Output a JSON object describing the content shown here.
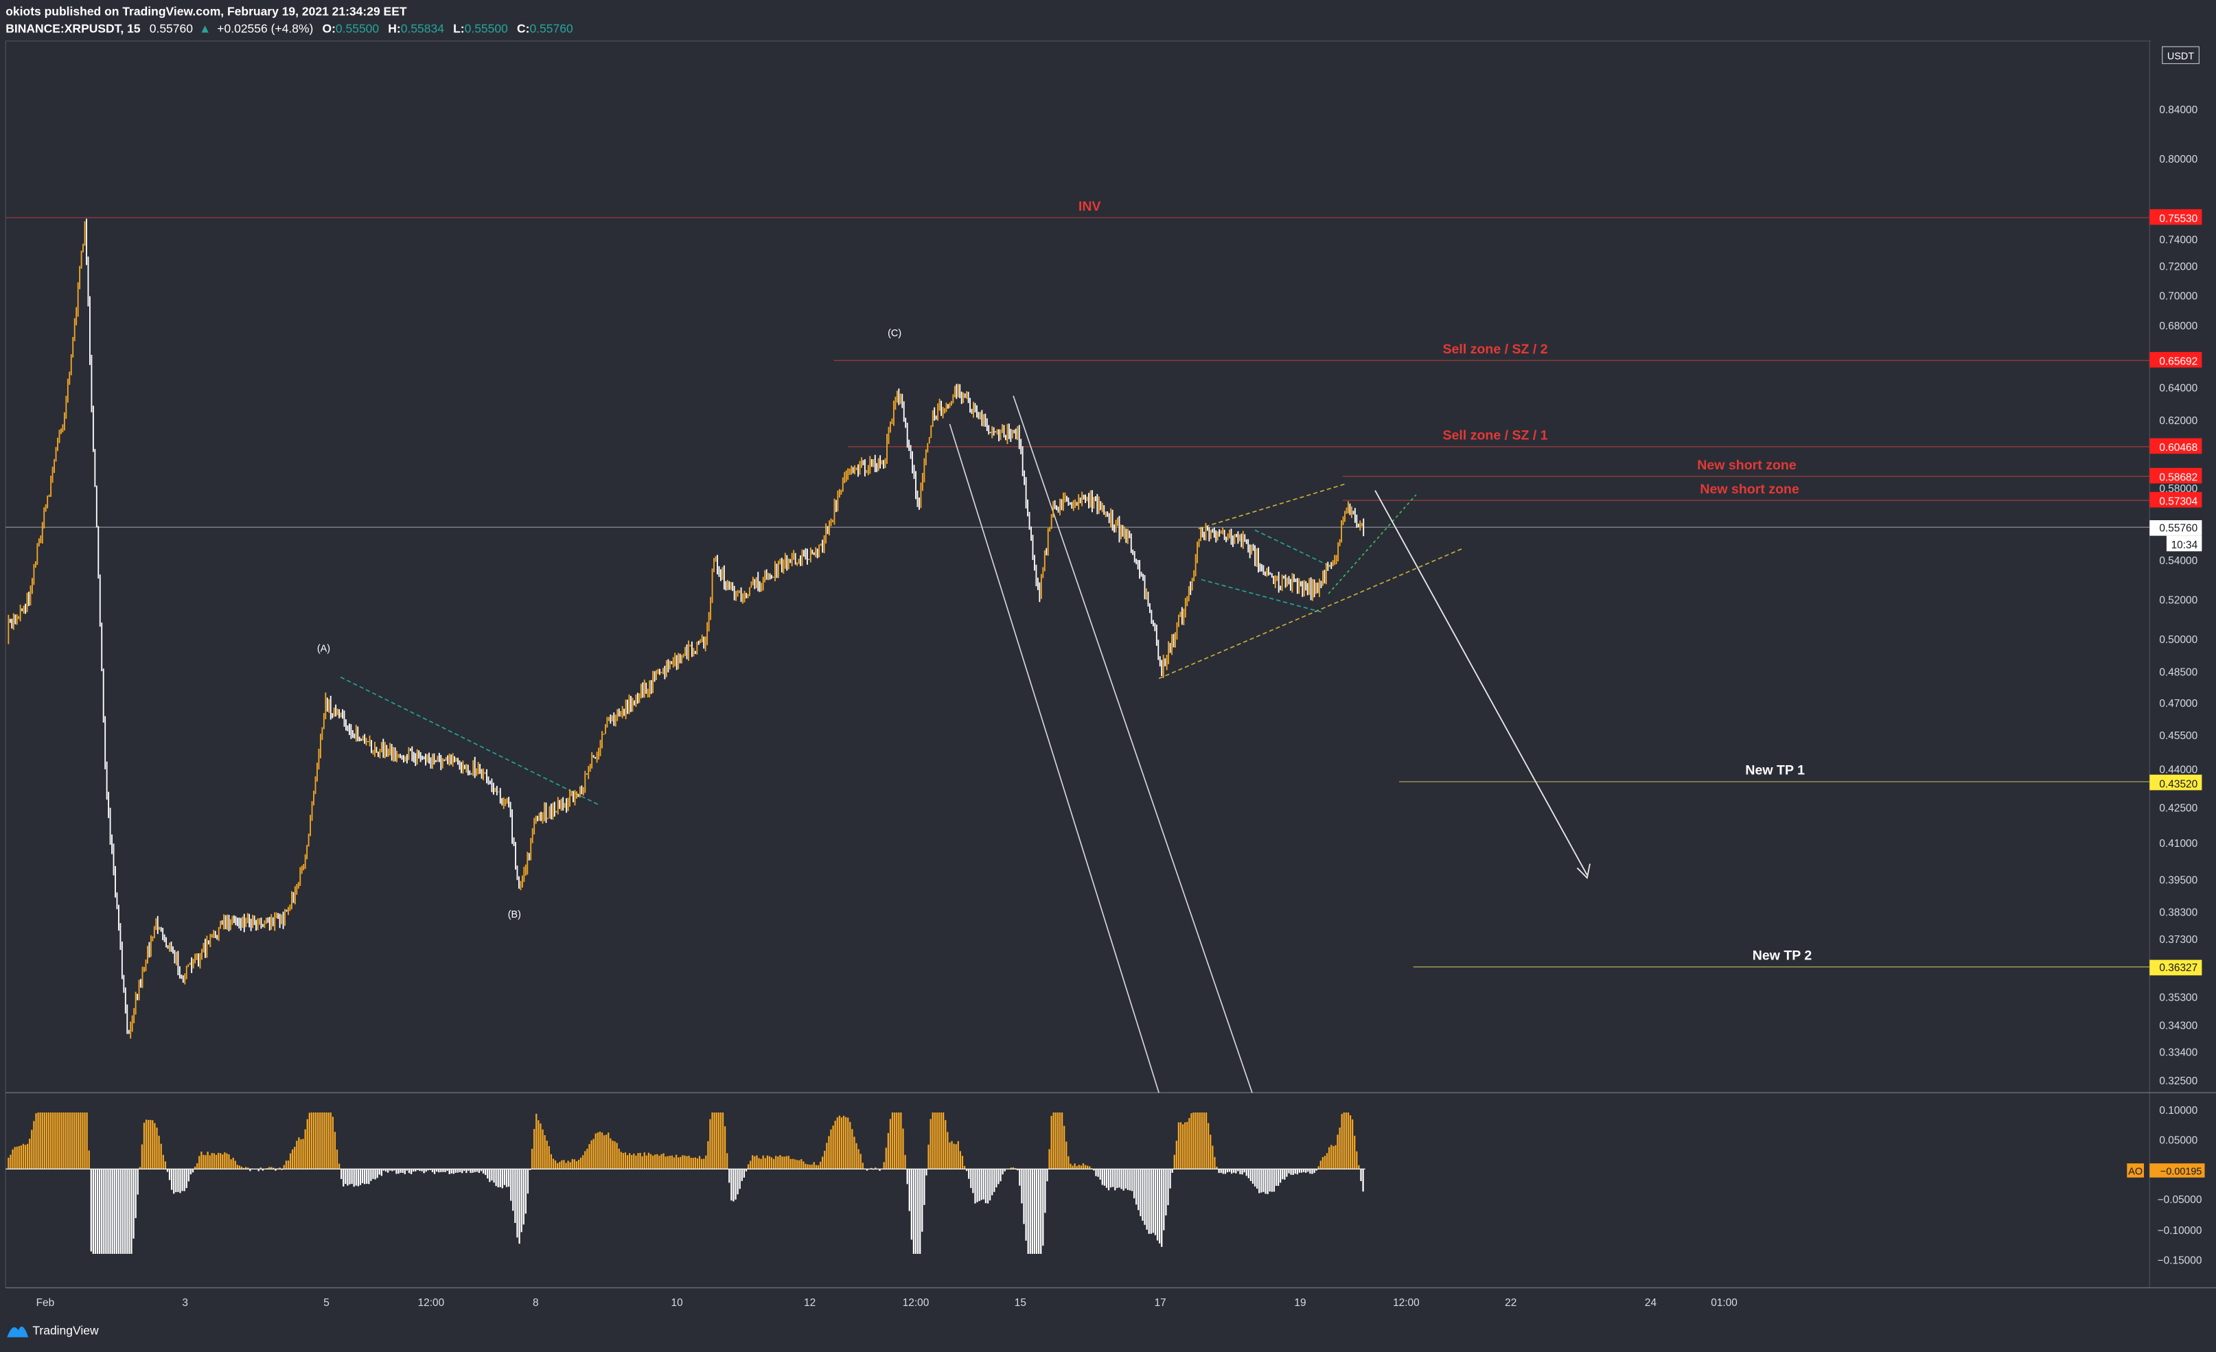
{
  "header": {
    "publisher": "okiots published on TradingView.com, February 19, 2021 21:34:29 EET",
    "symbol": "BINANCE:XRPUSDT, 15",
    "last": "0.55760",
    "change": "+0.02556 (+4.8%)",
    "o_label": "O:",
    "o_value": "0.55500",
    "h_label": "H:",
    "h_value": "0.55834",
    "l_label": "L:",
    "l_value": "0.55500",
    "c_label": "C:",
    "c_value": "0.55760"
  },
  "footer": {
    "brand": "TradingView"
  },
  "colors": {
    "background": "#2a2d36",
    "candle": "#f5a623",
    "candle_light": "#ffffff",
    "red_label": "#e53935",
    "red_tag": "#ff1e1e",
    "yellow_tag": "#ffeb3b",
    "orange_tag": "#f59c1a",
    "teal": "#26a69a"
  },
  "chart_data": {
    "type": "candlestick",
    "currency": "USDT",
    "price_axis": {
      "ticks": [
        "0.84000",
        "0.80000",
        "0.74000",
        "0.72000",
        "0.70000",
        "0.68000",
        "0.64000",
        "0.62000",
        "0.58000",
        "0.54000",
        "0.52000",
        "0.50000",
        "0.48500",
        "0.47000",
        "0.45500",
        "0.44000",
        "0.42500",
        "0.41000",
        "0.39500",
        "0.38300",
        "0.37300",
        "0.35300",
        "0.34300",
        "0.33400",
        "0.32500"
      ],
      "tags": [
        {
          "value": "0.75530",
          "style": "red"
        },
        {
          "value": "0.65692",
          "style": "red"
        },
        {
          "value": "0.60468",
          "style": "red"
        },
        {
          "value": "0.58682",
          "style": "red"
        },
        {
          "value": "0.57304",
          "style": "red"
        },
        {
          "value": "0.55760",
          "style": "white"
        },
        {
          "value": "10:34",
          "style": "white"
        },
        {
          "value": "0.43520",
          "style": "yellow"
        },
        {
          "value": "0.36327",
          "style": "yellow"
        }
      ]
    },
    "time_axis": [
      "Feb",
      "3",
      "5",
      "12:00",
      "8",
      "10",
      "12",
      "12:00",
      "15",
      "17",
      "19",
      "12:00",
      "22",
      "24",
      "01:00"
    ],
    "annotations": [
      {
        "text": "INV",
        "price": 0.7553
      },
      {
        "text": "Sell zone / SZ / 2",
        "price": 0.65692
      },
      {
        "text": "Sell zone / SZ / 1",
        "price": 0.60468
      },
      {
        "text": "New short zone",
        "price": 0.58682
      },
      {
        "text": "New short zone",
        "price": 0.57304
      },
      {
        "text": "New TP 1",
        "price": 0.4352
      },
      {
        "text": "New TP 2",
        "price": 0.36327
      }
    ],
    "wave_labels": [
      {
        "text": "(A)",
        "price": 0.498
      },
      {
        "text": "(B)",
        "price": 0.382
      },
      {
        "text": "(C)",
        "price": 0.674
      }
    ],
    "price_path": [
      [
        0,
        0.5
      ],
      [
        20,
        0.52
      ],
      [
        35,
        0.58
      ],
      [
        45,
        0.62
      ],
      [
        55,
        0.7
      ],
      [
        60,
        0.755
      ],
      [
        66,
        0.6
      ],
      [
        75,
        0.43
      ],
      [
        90,
        0.34
      ],
      [
        110,
        0.38
      ],
      [
        130,
        0.36
      ],
      [
        160,
        0.38
      ],
      [
        200,
        0.38
      ],
      [
        215,
        0.4
      ],
      [
        230,
        0.47
      ],
      [
        260,
        0.45
      ],
      [
        300,
        0.445
      ],
      [
        340,
        0.44
      ],
      [
        360,
        0.425
      ],
      [
        367,
        0.39
      ],
      [
        380,
        0.42
      ],
      [
        410,
        0.43
      ],
      [
        430,
        0.46
      ],
      [
        470,
        0.485
      ],
      [
        500,
        0.5
      ],
      [
        505,
        0.54
      ],
      [
        520,
        0.52
      ],
      [
        560,
        0.54
      ],
      [
        580,
        0.545
      ],
      [
        600,
        0.59
      ],
      [
        625,
        0.59
      ],
      [
        635,
        0.64
      ],
      [
        650,
        0.57
      ],
      [
        660,
        0.62
      ],
      [
        678,
        0.64
      ],
      [
        700,
        0.61
      ],
      [
        720,
        0.61
      ],
      [
        735,
        0.52
      ],
      [
        745,
        0.57
      ],
      [
        770,
        0.575
      ],
      [
        800,
        0.55
      ],
      [
        815,
        0.51
      ],
      [
        822,
        0.485
      ],
      [
        840,
        0.52
      ],
      [
        850,
        0.555
      ],
      [
        880,
        0.55
      ],
      [
        900,
        0.53
      ],
      [
        930,
        0.525
      ],
      [
        945,
        0.54
      ],
      [
        952,
        0.57
      ],
      [
        965,
        0.5576
      ]
    ],
    "ao_indicator": {
      "label": "AO",
      "value": "−0.00195",
      "ticks": [
        "0.10000",
        "0.05000",
        "−0.05000",
        "−0.10000",
        "−0.15000"
      ]
    }
  }
}
